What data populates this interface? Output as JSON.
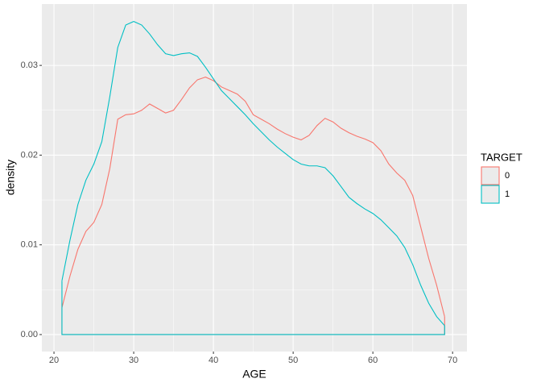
{
  "chart_data": {
    "type": "line",
    "x_label": "AGE",
    "y_label": "density",
    "legend_title": "TARGET",
    "legend_position": "right",
    "grid": true,
    "x": [
      21,
      22,
      23,
      24,
      25,
      26,
      27,
      28,
      29,
      30,
      31,
      32,
      33,
      34,
      35,
      36,
      37,
      38,
      39,
      40,
      41,
      42,
      43,
      44,
      45,
      46,
      47,
      48,
      49,
      50,
      51,
      52,
      53,
      54,
      55,
      56,
      57,
      58,
      59,
      60,
      61,
      62,
      63,
      64,
      65,
      66,
      67,
      68,
      69
    ],
    "series": [
      {
        "name": "0",
        "color": "#F8766D",
        "values": [
          0.003,
          0.0065,
          0.0095,
          0.0115,
          0.0125,
          0.0145,
          0.0185,
          0.024,
          0.0245,
          0.0246,
          0.025,
          0.0257,
          0.0252,
          0.0247,
          0.025,
          0.0262,
          0.0275,
          0.0284,
          0.0287,
          0.0283,
          0.0276,
          0.0272,
          0.0268,
          0.026,
          0.0245,
          0.024,
          0.0235,
          0.0229,
          0.0224,
          0.022,
          0.0217,
          0.0222,
          0.0233,
          0.0241,
          0.0237,
          0.023,
          0.0225,
          0.0221,
          0.0218,
          0.0214,
          0.0205,
          0.019,
          0.018,
          0.0172,
          0.0155,
          0.012,
          0.0085,
          0.0055,
          0.002
        ]
      },
      {
        "name": "1",
        "color": "#00BFC4",
        "values": [
          0.006,
          0.0105,
          0.0145,
          0.0172,
          0.019,
          0.0215,
          0.0265,
          0.032,
          0.0345,
          0.0349,
          0.0345,
          0.0335,
          0.0323,
          0.0313,
          0.0311,
          0.0313,
          0.0314,
          0.031,
          0.0298,
          0.0285,
          0.0272,
          0.0263,
          0.0254,
          0.0245,
          0.0235,
          0.0226,
          0.0217,
          0.0209,
          0.0202,
          0.0195,
          0.019,
          0.0188,
          0.0188,
          0.0186,
          0.0177,
          0.0165,
          0.0153,
          0.0146,
          0.014,
          0.0135,
          0.0128,
          0.0119,
          0.011,
          0.0097,
          0.0078,
          0.0055,
          0.0035,
          0.002,
          0.001
        ]
      }
    ],
    "xlim": [
      18.48,
      71.8
    ],
    "ylim": [
      -0.00189,
      0.03684
    ],
    "xticks": [
      20,
      30,
      40,
      50,
      60,
      70
    ],
    "yticks": [
      {
        "value": 0,
        "label": "0.00"
      },
      {
        "value": 0.01,
        "label": "0.01"
      },
      {
        "value": 0.02,
        "label": "0.02"
      },
      {
        "value": 0.03,
        "label": "0.03"
      }
    ]
  }
}
